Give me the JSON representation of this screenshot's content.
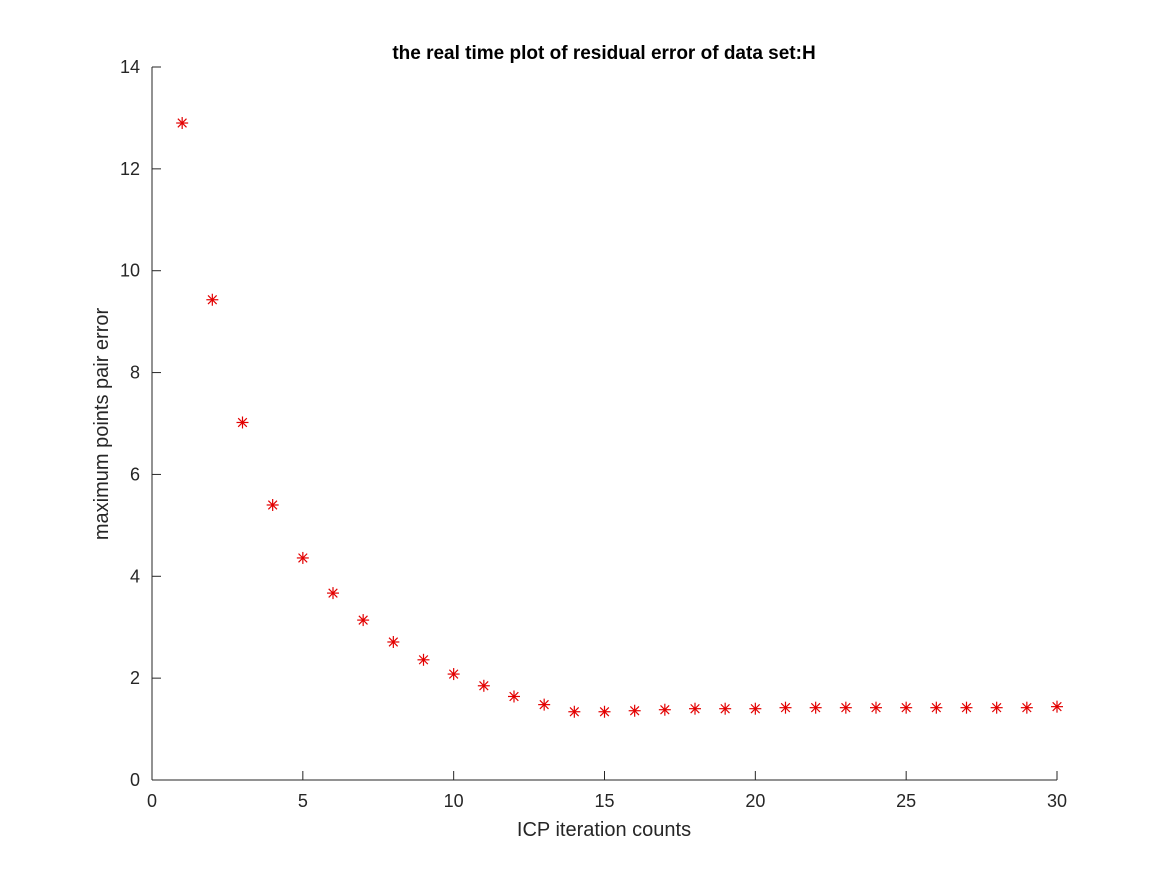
{
  "chart_data": {
    "type": "scatter",
    "title": "the real time plot of residual error of data set:H",
    "xlabel": "ICP iteration counts",
    "ylabel": "maximum points pair error",
    "xlim": [
      0,
      30
    ],
    "ylim": [
      0,
      14
    ],
    "x_ticks": [
      "0",
      "5",
      "10",
      "15",
      "20",
      "25",
      "30"
    ],
    "y_ticks": [
      "0",
      "2",
      "4",
      "6",
      "8",
      "10",
      "12",
      "14"
    ],
    "grid": false,
    "legend": "none",
    "marker": "asterisk",
    "color": "#e30000",
    "series": [
      {
        "x": [
          1,
          2,
          3,
          4,
          5,
          6,
          7,
          8,
          9,
          10,
          11,
          12,
          13,
          14,
          15,
          16,
          17,
          18,
          19,
          20,
          21,
          22,
          23,
          24,
          25,
          26,
          27,
          28,
          29,
          30
        ],
        "y": [
          12.9,
          9.43,
          7.02,
          5.4,
          4.36,
          3.67,
          3.14,
          2.71,
          2.36,
          2.08,
          1.85,
          1.64,
          1.48,
          1.34,
          1.34,
          1.36,
          1.38,
          1.4,
          1.4,
          1.4,
          1.42,
          1.42,
          1.42,
          1.42,
          1.42,
          1.42,
          1.42,
          1.42,
          1.42,
          1.44
        ]
      }
    ]
  }
}
